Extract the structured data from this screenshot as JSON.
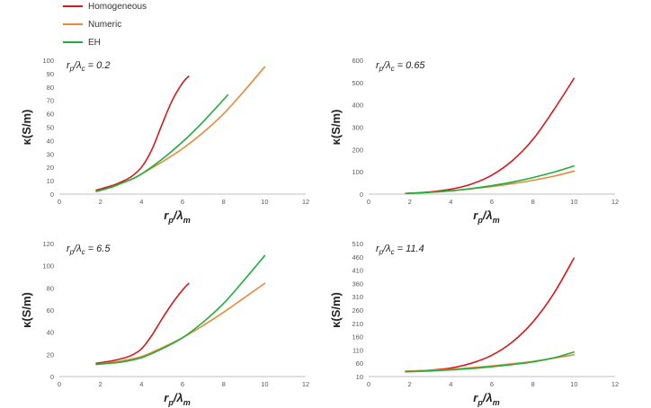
{
  "legend": {
    "items": [
      {
        "label": "Homogeneous",
        "color": "#d7191c"
      },
      {
        "label": "Numeric",
        "color": "#e8893a"
      },
      {
        "label": "EH",
        "color": "#1fae3a"
      }
    ]
  },
  "chart_data": [
    {
      "type": "line",
      "annotation": "r_p/λ_c = 0.2",
      "xlabel": "r_p/λ_m",
      "ylabel": "κ(S/m)",
      "xlim": [
        0,
        12
      ],
      "ylim": [
        0,
        100
      ],
      "xticks": [
        0,
        2,
        4,
        6,
        8,
        10,
        12
      ],
      "yticks": [
        0,
        10,
        20,
        30,
        40,
        50,
        60,
        70,
        80,
        90,
        100
      ],
      "series": [
        {
          "name": "Homogeneous",
          "color": "#d7191c",
          "x": [
            1.8,
            2.5,
            3.0,
            3.5,
            4.0,
            4.5,
            5.0,
            5.5,
            6.0,
            6.3
          ],
          "y": [
            3,
            6,
            9,
            13,
            20,
            33,
            52,
            70,
            83,
            88
          ]
        },
        {
          "name": "Numeric",
          "color": "#e8893a",
          "x": [
            1.8,
            2.5,
            3.0,
            3.5,
            4.0,
            5.0,
            6.0,
            7.0,
            8.0,
            9.0,
            10.0
          ],
          "y": [
            2,
            5,
            8,
            11,
            15,
            24,
            34,
            46,
            60,
            77,
            95
          ]
        },
        {
          "name": "EH",
          "color": "#1fae3a",
          "x": [
            1.8,
            2.5,
            3.0,
            3.5,
            4.0,
            5.0,
            6.0,
            7.0,
            8.2
          ],
          "y": [
            2,
            5,
            8,
            11,
            15,
            26,
            39,
            54,
            74
          ]
        }
      ]
    },
    {
      "type": "line",
      "annotation": "r_p/λ_c = 0.65",
      "xlabel": "r_p/λ_m",
      "ylabel": "κ(S/m)",
      "xlim": [
        0,
        12
      ],
      "ylim": [
        0,
        600
      ],
      "xticks": [
        0,
        2,
        4,
        6,
        8,
        10,
        12
      ],
      "yticks": [
        0,
        100,
        200,
        300,
        400,
        500,
        600
      ],
      "series": [
        {
          "name": "Homogeneous",
          "color": "#d7191c",
          "x": [
            1.8,
            3.0,
            4.0,
            5.0,
            6.0,
            7.0,
            8.0,
            9.0,
            10.0
          ],
          "y": [
            3,
            10,
            22,
            45,
            85,
            150,
            245,
            375,
            518
          ]
        },
        {
          "name": "Numeric",
          "color": "#e8893a",
          "x": [
            1.8,
            3.0,
            4.0,
            5.0,
            6.0,
            7.0,
            8.0,
            9.0,
            10.0
          ],
          "y": [
            3,
            8,
            15,
            24,
            34,
            47,
            62,
            80,
            103
          ]
        },
        {
          "name": "EH",
          "color": "#1fae3a",
          "x": [
            1.8,
            3.0,
            4.0,
            5.0,
            6.0,
            7.0,
            8.0,
            9.0,
            10.0
          ],
          "y": [
            3,
            8,
            15,
            25,
            38,
            54,
            74,
            98,
            126
          ]
        }
      ]
    },
    {
      "type": "line",
      "annotation": "r_p/λ_c = 6.5",
      "xlabel": "r_p/λ_m",
      "ylabel": "κ(S/m)",
      "xlim": [
        0,
        12
      ],
      "ylim": [
        0,
        120
      ],
      "xticks": [
        0,
        2,
        4,
        6,
        8,
        10,
        12
      ],
      "yticks": [
        0,
        20,
        40,
        60,
        80,
        100,
        120
      ],
      "series": [
        {
          "name": "Homogeneous",
          "color": "#d7191c",
          "x": [
            1.8,
            2.5,
            3.0,
            3.5,
            4.0,
            4.5,
            5.0,
            5.5,
            6.0,
            6.3
          ],
          "y": [
            12,
            14,
            16,
            19,
            25,
            37,
            52,
            66,
            78,
            84
          ]
        },
        {
          "name": "Numeric",
          "color": "#e8893a",
          "x": [
            1.8,
            3.0,
            4.0,
            5.0,
            6.0,
            7.0,
            8.0,
            9.0,
            10.0
          ],
          "y": [
            11,
            14,
            18,
            26,
            35,
            46,
            58,
            71,
            84
          ]
        },
        {
          "name": "EH",
          "color": "#1fae3a",
          "x": [
            1.8,
            3.0,
            4.0,
            5.0,
            6.0,
            7.0,
            8.0,
            9.0,
            10.0
          ],
          "y": [
            11,
            13,
            17,
            25,
            35,
            49,
            66,
            87,
            109
          ]
        }
      ]
    },
    {
      "type": "line",
      "annotation": "r_p/λ_c = 11.4",
      "xlabel": "r_p/λ_m",
      "ylabel": "κ(S/m)",
      "xlim": [
        0,
        12
      ],
      "ylim": [
        10,
        510
      ],
      "xticks": [
        0,
        2,
        4,
        6,
        8,
        10,
        12
      ],
      "yticks": [
        10,
        60,
        110,
        160,
        210,
        260,
        310,
        360,
        410,
        460,
        510
      ],
      "series": [
        {
          "name": "Homogeneous",
          "color": "#d7191c",
          "x": [
            1.8,
            3.0,
            4.0,
            5.0,
            6.0,
            7.0,
            8.0,
            9.0,
            10.0
          ],
          "y": [
            30,
            34,
            42,
            60,
            90,
            140,
            215,
            320,
            455
          ]
        },
        {
          "name": "Numeric",
          "color": "#e8893a",
          "x": [
            1.8,
            3.0,
            4.0,
            5.0,
            6.0,
            7.0,
            8.0,
            9.0,
            10.0
          ],
          "y": [
            30,
            33,
            37,
            43,
            50,
            58,
            67,
            79,
            92
          ]
        },
        {
          "name": "EH",
          "color": "#1fae3a",
          "x": [
            1.8,
            3.0,
            4.0,
            5.0,
            6.0,
            7.0,
            8.0,
            9.0,
            10.0
          ],
          "y": [
            28,
            31,
            35,
            40,
            47,
            55,
            65,
            80,
            102
          ]
        }
      ]
    }
  ]
}
